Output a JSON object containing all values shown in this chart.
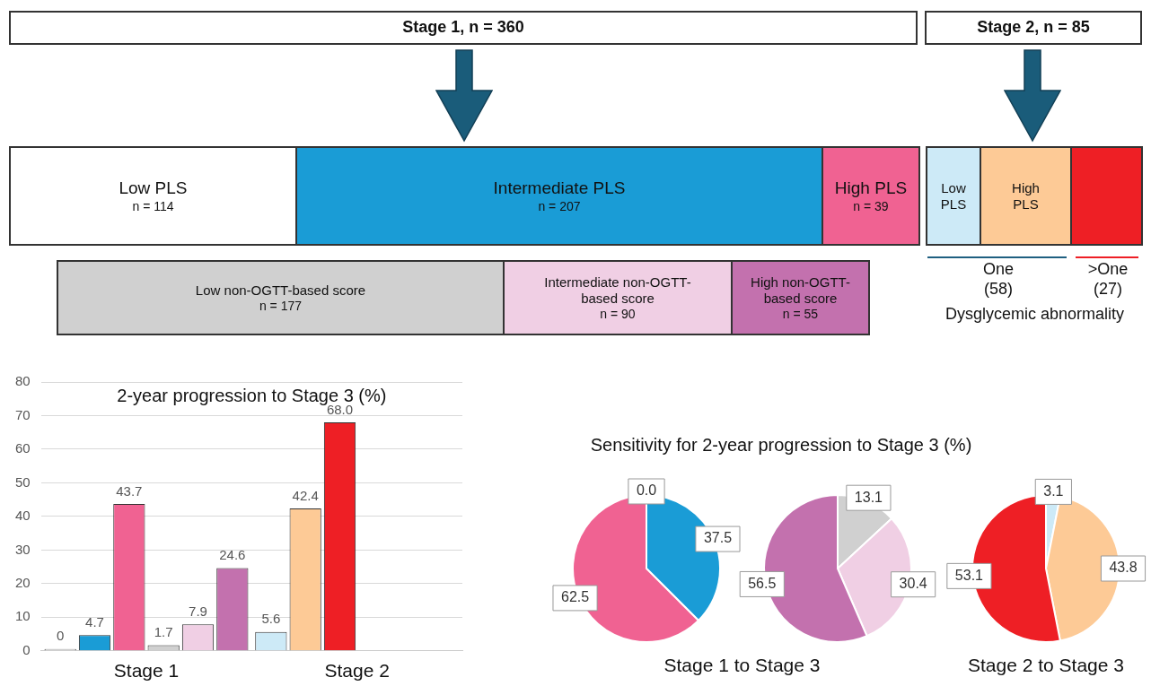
{
  "chart_data": [
    {
      "type": "other",
      "annotations": [
        "Stage 1, n = 360",
        "Stage 2, n = 85",
        "Low PLS\nn = 114",
        "Intermediate PLS\nn = 207",
        "High PLS\nn = 39",
        "Low\nPLS",
        "High\nPLS",
        "Low non-OGTT-based score\nn = 177",
        "Intermediate non-OGTT-based score\nn = 90",
        "High non-OGTT-based score\nn = 55",
        "One\n(58)",
        ">One\n(27)",
        "Dysglycemic abnormality"
      ]
    },
    {
      "type": "bar",
      "title": "2-year progression to Stage 3 (%)",
      "categories": [
        "Stage 1",
        "Stage 2"
      ],
      "ylim": [
        0,
        80
      ],
      "yticks": [
        0,
        10,
        20,
        30,
        40,
        50,
        60,
        70,
        80
      ],
      "grid": "y",
      "legend": false,
      "series": [
        {
          "colors": [
            "#ffffff",
            "#cdeaf7"
          ],
          "values": [
            0,
            5.6
          ],
          "value_labels": [
            "0",
            "5.6"
          ]
        },
        {
          "colors": [
            "#1a9cd6",
            "#fdca96"
          ],
          "values": [
            4.7,
            42.4
          ],
          "value_labels": [
            "4.7",
            "42.4"
          ]
        },
        {
          "colors": [
            "#f06292",
            "#ee1f25"
          ],
          "values": [
            43.7,
            68.0
          ],
          "value_labels": [
            "43.7",
            "68.0"
          ]
        },
        {
          "colors": [
            "#d0d0d0",
            "#d0d0d0"
          ],
          "values": [
            1.7,
            null
          ],
          "value_labels": [
            "1.7",
            null
          ]
        },
        {
          "colors": [
            "#f0cfe4",
            "#f0cfe4"
          ],
          "values": [
            7.9,
            null
          ],
          "value_labels": [
            "7.9",
            null
          ]
        },
        {
          "colors": [
            "#c371ae",
            "#c371ae"
          ],
          "values": [
            24.6,
            null
          ],
          "value_labels": [
            "24.6",
            null
          ]
        }
      ]
    },
    {
      "type": "pie",
      "title": "Sensitivity for 2-year progression to Stage 3 (%)",
      "xlabel": "Stage 1 to Stage 3",
      "categories": [
        null,
        null,
        null
      ],
      "values": [
        0.0,
        37.5,
        62.5
      ],
      "colors": [
        "#ffffff",
        "#1a9cd6",
        "#f06292"
      ],
      "value_labels": [
        "0.0",
        "37.5",
        "62.5"
      ]
    },
    {
      "type": "pie",
      "categories": [
        null,
        null,
        null
      ],
      "values": [
        13.1,
        30.4,
        56.5
      ],
      "colors": [
        "#d0d0d0",
        "#f0cfe4",
        "#c371ae"
      ],
      "value_labels": [
        "13.1",
        "30.4",
        "56.5"
      ]
    },
    {
      "type": "pie",
      "xlabel": "Stage 2 to Stage 3",
      "categories": [
        null,
        null,
        null
      ],
      "values": [
        3.1,
        43.8,
        53.1
      ],
      "colors": [
        "#cdeaf7",
        "#fdca96",
        "#ee1f25"
      ],
      "value_labels": [
        "3.1",
        "43.8",
        "53.1"
      ]
    }
  ]
}
